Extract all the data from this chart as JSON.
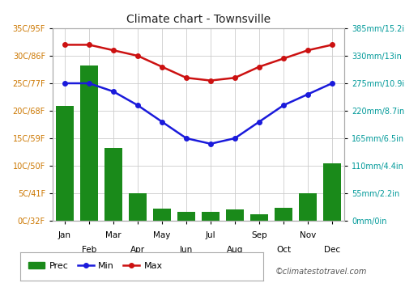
{
  "title": "Climate chart - Townsville",
  "months": [
    "Jan",
    "Feb",
    "Mar",
    "Apr",
    "May",
    "Jun",
    "Jul",
    "Aug",
    "Sep",
    "Oct",
    "Nov",
    "Dec"
  ],
  "prec": [
    230,
    310,
    145,
    55,
    25,
    18,
    18,
    22,
    13,
    26,
    55,
    115
  ],
  "temp_min": [
    25,
    25,
    23.5,
    21,
    18,
    15,
    14,
    15,
    18,
    21,
    23,
    25
  ],
  "temp_max": [
    32,
    32,
    31,
    30,
    28,
    26,
    25.5,
    26,
    28,
    29.5,
    31,
    32
  ],
  "left_yticks": [
    0,
    5,
    10,
    15,
    20,
    25,
    30,
    35
  ],
  "left_ylabels": [
    "0C/32F",
    "5C/41F",
    "10C/50F",
    "15C/59F",
    "20C/68F",
    "25C/77F",
    "30C/86F",
    "35C/95F"
  ],
  "right_yticks": [
    0,
    55,
    110,
    165,
    220,
    275,
    330,
    385
  ],
  "right_ylabels": [
    "0mm/0in",
    "55mm/2.2in",
    "110mm/4.4in",
    "165mm/6.5in",
    "220mm/8.7in",
    "275mm/10.9in",
    "330mm/13in",
    "385mm/15.2in"
  ],
  "prec_color": "#1a8a1a",
  "min_color": "#1a1adb",
  "max_color": "#cc1111",
  "bg_color": "#ffffff",
  "grid_color": "#cccccc",
  "title_color": "#222222",
  "left_tick_color": "#cc7700",
  "right_tick_color": "#009999",
  "watermark": "©climatestotravel.com",
  "temp_ylim": [
    0,
    35
  ],
  "prec_ylim": [
    0,
    385
  ],
  "xtick_row1": [
    "Jan",
    "",
    "Mar",
    "",
    "May",
    "",
    "Jul",
    "",
    "Sep",
    "",
    "Nov",
    ""
  ],
  "xtick_row2": [
    "",
    "Feb",
    "",
    "Apr",
    "",
    "Jun",
    "",
    "Aug",
    "",
    "Oct",
    "",
    "Dec"
  ]
}
